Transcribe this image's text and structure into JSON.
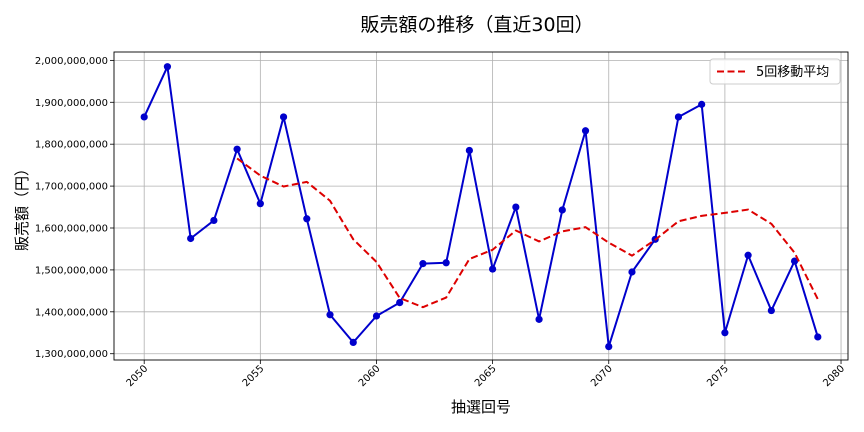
{
  "chart_data": {
    "type": "line",
    "title": "販売額の推移（直近30回）",
    "xlabel": "抽選回号",
    "ylabel": "販売額（円）",
    "xlim": [
      2048.7,
      2080.3
    ],
    "ylim": [
      1285000000,
      2020000000
    ],
    "grid": true,
    "legend_position": "top-right",
    "xticks": [
      2050,
      2055,
      2060,
      2065,
      2070,
      2075,
      2080
    ],
    "xtick_labels": [
      "2050",
      "2055",
      "2060",
      "2065",
      "2070",
      "2075",
      "2080"
    ],
    "yticks": [
      1300000000,
      1400000000,
      1500000000,
      1600000000,
      1700000000,
      1800000000,
      1900000000,
      2000000000
    ],
    "ytick_labels": [
      "1,300,000,000",
      "1,400,000,000",
      "1,500,000,000",
      "1,600,000,000",
      "1,700,000,000",
      "1,800,000,000",
      "1,900,000,000",
      "2,000,000,000"
    ],
    "x": [
      2050,
      2051,
      2052,
      2053,
      2054,
      2055,
      2056,
      2057,
      2058,
      2059,
      2060,
      2061,
      2062,
      2063,
      2064,
      2065,
      2066,
      2067,
      2068,
      2069,
      2070,
      2071,
      2072,
      2073,
      2074,
      2075,
      2076,
      2077,
      2078,
      2079
    ],
    "series": [
      {
        "color": "#0000cc",
        "style": "solid",
        "markers": true,
        "values": [
          1865000000,
          1985000000,
          1575000000,
          1618000000,
          1788000000,
          1658000000,
          1865000000,
          1622000000,
          1393000000,
          1327000000,
          1390000000,
          1422000000,
          1515000000,
          1517000000,
          1785000000,
          1502000000,
          1650000000,
          1382000000,
          1643000000,
          1832000000,
          1317000000,
          1495000000,
          1573000000,
          1865000000,
          1895000000,
          1350000000,
          1535000000,
          1403000000,
          1521000000,
          1340000000
        ]
      },
      {
        "name": "5回移動平均",
        "color": "#dd0000",
        "style": "dashed",
        "markers": false,
        "x": [
          2054,
          2055,
          2056,
          2057,
          2058,
          2059,
          2060,
          2061,
          2062,
          2063,
          2064,
          2065,
          2066,
          2067,
          2068,
          2069,
          2070,
          2071,
          2072,
          2073,
          2074,
          2075,
          2076,
          2077,
          2078,
          2079
        ],
        "values": [
          1766000000,
          1725000000,
          1699000000,
          1710000000,
          1665000000,
          1573000000,
          1519000000,
          1433000000,
          1411000000,
          1434000000,
          1526000000,
          1548000000,
          1594000000,
          1568000000,
          1592000000,
          1602000000,
          1565000000,
          1534000000,
          1572000000,
          1616000000,
          1629000000,
          1636000000,
          1644000000,
          1610000000,
          1541000000,
          1430000000
        ]
      }
    ]
  }
}
